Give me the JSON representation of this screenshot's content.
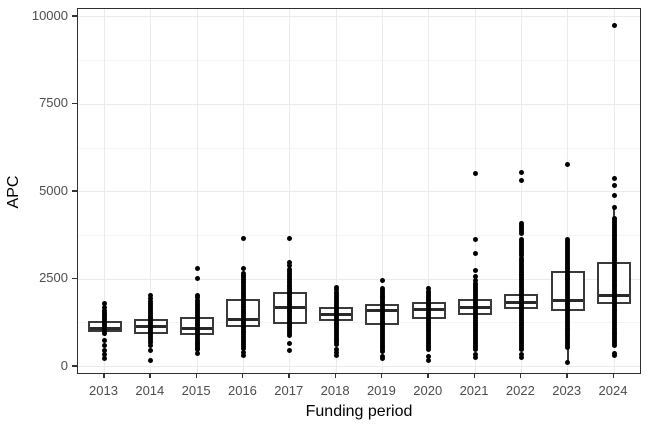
{
  "chart_data": {
    "type": "boxplot",
    "title": "",
    "xlabel": "Funding period",
    "ylabel": "APC",
    "ylim": [
      0,
      10000
    ],
    "y_major_ticks": [
      0,
      2500,
      5000,
      7500,
      10000
    ],
    "y_tick_labels": [
      "0",
      "2500",
      "5000",
      "7500",
      "10000"
    ],
    "y_minor_ticks": [
      1250,
      3750,
      6250,
      8750
    ],
    "grid": "major-and-minor-horizontal, major-vertical-per-category",
    "legend_position": "none",
    "point_color": "#000000",
    "box_border_color": "#3a3a3a",
    "categories": [
      "2013",
      "2014",
      "2015",
      "2016",
      "2017",
      "2018",
      "2019",
      "2020",
      "2021",
      "2022",
      "2023",
      "2024"
    ],
    "series": [
      {
        "year": "2013",
        "q1": 980,
        "median": 1150,
        "q3": 1290,
        "whisker_low": 870,
        "whisker_high": 1560,
        "outliers": [
          1790,
          1700,
          744,
          600,
          458,
          343,
          230
        ],
        "column": [
          [
            950,
            1620
          ]
        ]
      },
      {
        "year": "2014",
        "q1": 935,
        "median": 1200,
        "q3": 1365,
        "whisker_low": 560,
        "whisker_high": 1890,
        "outliers": [
          2030,
          1945,
          600,
          460,
          172
        ],
        "column": [
          [
            700,
            1890
          ]
        ]
      },
      {
        "year": "2015",
        "q1": 890,
        "median": 1145,
        "q3": 1430,
        "whisker_low": 500,
        "whisker_high": 1900,
        "outliers": [
          2795,
          2510,
          2030,
          1970,
          660,
          515,
          372
        ],
        "column": [
          [
            500,
            1900
          ]
        ]
      },
      {
        "year": "2016",
        "q1": 1125,
        "median": 1405,
        "q3": 1935,
        "whisker_low": 520,
        "whisker_high": 2680,
        "outliers": [
          3650,
          2800,
          400,
          315
        ],
        "column": [
          [
            520,
            2680
          ]
        ]
      },
      {
        "year": "2017",
        "q1": 1220,
        "median": 1745,
        "q3": 2125,
        "whisker_low": 890,
        "whisker_high": 2800,
        "outliers": [
          3650,
          2985,
          2890,
          660,
          458
        ],
        "column": [
          [
            900,
            2800
          ]
        ]
      },
      {
        "year": "2018",
        "q1": 1315,
        "median": 1535,
        "q3": 1700,
        "whisker_low": 620,
        "whisker_high": 2130,
        "outliers": [
          2270,
          2200,
          500,
          400,
          315
        ],
        "column": [
          [
            620,
            2130
          ]
        ]
      },
      {
        "year": "2019",
        "q1": 1175,
        "median": 1650,
        "q3": 1795,
        "whisker_low": 420,
        "whisker_high": 2270,
        "outliers": [
          2460,
          300,
          230
        ],
        "column": [
          [
            420,
            2270
          ]
        ]
      },
      {
        "year": "2020",
        "q1": 1365,
        "median": 1695,
        "q3": 1840,
        "whisker_low": 500,
        "whisker_high": 2160,
        "outliers": [
          2230,
          280,
          172
        ],
        "column": [
          [
            500,
            2160
          ]
        ]
      },
      {
        "year": "2021",
        "q1": 1460,
        "median": 1745,
        "q3": 1935,
        "whisker_low": 500,
        "whisker_high": 2400,
        "outliers": [
          5530,
          3620,
          3225,
          2750,
          2575,
          2460,
          350,
          270
        ],
        "column": [
          [
            500,
            2400
          ]
        ]
      },
      {
        "year": "2022",
        "q1": 1650,
        "median": 1890,
        "q3": 2080,
        "whisker_low": 500,
        "whisker_high": 3100,
        "outliers": [
          5560,
          5320,
          350,
          270
        ],
        "column": [
          [
            500,
            3100
          ],
          [
            3180,
            3660
          ],
          [
            3805,
            4090
          ]
        ]
      },
      {
        "year": "2023",
        "q1": 1600,
        "median": 1935,
        "q3": 2745,
        "whisker_low": 150,
        "whisker_high": 3660,
        "outliers": [
          5780,
          125
        ],
        "column": [
          [
            550,
            3660
          ]
        ]
      },
      {
        "year": "2024",
        "q1": 1795,
        "median": 2080,
        "q3": 2980,
        "whisker_low": 640,
        "whisker_high": 4500,
        "outliers": [
          9755,
          5370,
          5180,
          4890,
          4560,
          380,
          320
        ],
        "column": [
          [
            600,
            4230
          ]
        ]
      }
    ]
  },
  "axes": {
    "x_title": "Funding period",
    "y_title": "APC"
  }
}
